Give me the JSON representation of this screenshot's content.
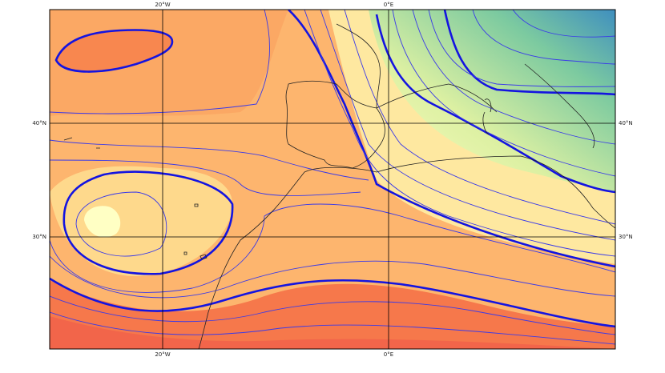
{
  "graticule": {
    "top": [
      "20°W",
      "0°E"
    ],
    "bottom": [
      "20°W",
      "0°E"
    ],
    "left": [
      "40°N",
      "30°N"
    ],
    "right": [
      "40°N",
      "30°N"
    ]
  }
}
